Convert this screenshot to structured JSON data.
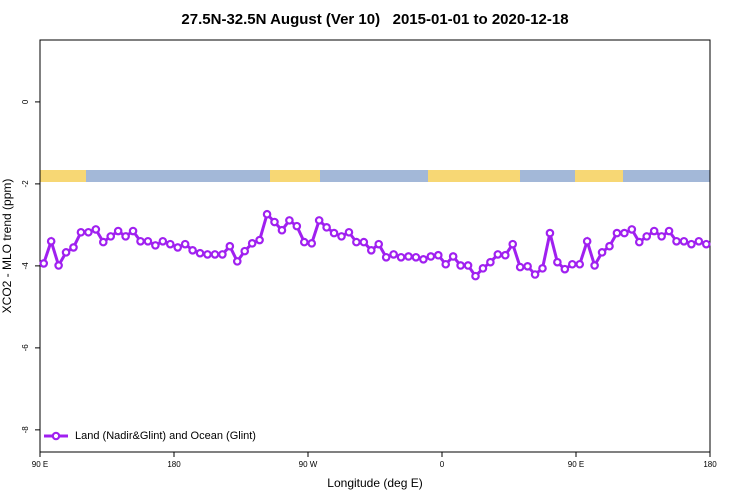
{
  "chart_data": {
    "type": "line",
    "title": "27.5N-32.5N August (Ver 10)   2015-01-01 to 2020-12-18",
    "xlabel": "Longitude (deg E)",
    "ylabel": "XCO2 - MLO trend (ppm)",
    "xlim": [
      90,
      540
    ],
    "xticks": [
      {
        "value": 90,
        "label": "90 E"
      },
      180,
      {
        "value": 270,
        "label": "90 W"
      },
      {
        "value": 360,
        "label": "0"
      },
      {
        "value": 450,
        "label": "90 E"
      },
      {
        "value": 540,
        "label": "180"
      }
    ],
    "ylim": [
      -8.54,
      1.51
    ],
    "yticks": [
      0,
      -2,
      -4,
      -6,
      -8
    ],
    "legend": "bottom-left",
    "x": [
      92.5,
      97.5,
      102.5,
      107.5,
      112.5,
      117.5,
      122.5,
      127.5,
      132.5,
      137.5,
      142.5,
      147.5,
      152.5,
      157.5,
      162.5,
      167.5,
      172.5,
      177.5,
      182.5,
      187.5,
      192.5,
      197.5,
      202.5,
      207.5,
      212.5,
      217.5,
      222.5,
      227.5,
      232.5,
      237.5,
      242.5,
      247.5,
      252.5,
      257.5,
      262.5,
      267.5,
      272.5,
      277.5,
      282.5,
      287.5,
      292.5,
      297.5,
      302.5,
      307.5,
      312.5,
      317.5,
      322.5,
      327.5,
      332.5,
      337.5,
      342.5,
      347.5,
      352.5,
      357.5,
      362.5,
      367.5,
      372.5,
      377.5,
      382.5,
      387.5,
      392.5,
      397.5,
      402.5,
      407.5,
      412.5,
      417.5,
      422.5,
      427.5,
      432.5,
      437.5,
      442.5,
      447.5,
      452.5,
      457.5,
      462.5,
      467.5,
      472.5,
      477.5,
      482.5,
      487.5,
      492.5,
      497.5,
      502.5,
      507.5,
      512.5,
      517.5,
      522.5,
      527.5,
      532.5,
      537.5
    ],
    "series": [
      {
        "name": "Land (Nadir&Glint) and Ocean (Glint)",
        "color": "#a020f0",
        "values": [
          -3.94,
          -3.4,
          -3.99,
          -3.67,
          -3.55,
          -3.18,
          -3.18,
          -3.11,
          -3.42,
          -3.28,
          -3.15,
          -3.28,
          -3.15,
          -3.4,
          -3.4,
          -3.5,
          -3.4,
          -3.47,
          -3.55,
          -3.47,
          -3.62,
          -3.69,
          -3.72,
          -3.72,
          -3.72,
          -3.52,
          -3.89,
          -3.64,
          -3.45,
          -3.37,
          -2.74,
          -2.93,
          -3.13,
          -2.89,
          -3.03,
          -3.42,
          -3.45,
          -2.89,
          -3.06,
          -3.2,
          -3.28,
          -3.18,
          -3.42,
          -3.42,
          -3.62,
          -3.47,
          -3.79,
          -3.72,
          -3.79,
          -3.77,
          -3.79,
          -3.84,
          -3.77,
          -3.74,
          -3.96,
          -3.77,
          -3.99,
          -3.99,
          -4.25,
          -4.06,
          -3.91,
          -3.72,
          -3.74,
          -3.47,
          -4.03,
          -4.01,
          -4.21,
          -4.06,
          -3.2,
          -3.91,
          -4.08,
          -3.96,
          -3.96,
          -3.4,
          -3.99,
          -3.67,
          -3.52,
          -3.2,
          -3.2,
          -3.11,
          -3.42,
          -3.28,
          -3.15,
          -3.28,
          -3.15,
          -3.4,
          -3.4,
          -3.47,
          -3.4,
          -3.47
        ]
      }
    ]
  }
}
